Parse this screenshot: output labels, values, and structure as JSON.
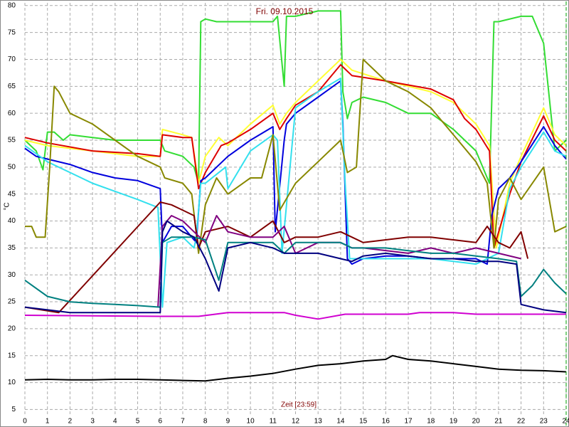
{
  "chart_data": {
    "type": "line",
    "title": "Fri. 09.10.2015",
    "x_label": "Zeit [23:59]",
    "y_label": "°C",
    "xlim": [
      0,
      24
    ],
    "xticks": [
      0,
      1,
      2,
      3,
      4,
      5,
      6,
      7,
      8,
      9,
      10,
      11,
      12,
      13,
      14,
      15,
      16,
      17,
      18,
      19,
      20,
      21,
      22,
      23,
      24
    ],
    "ylim": [
      4,
      80.5
    ],
    "yticks": [
      5,
      10,
      15,
      20,
      25,
      30,
      35,
      40,
      45,
      50,
      55,
      60,
      65,
      70,
      75,
      80
    ],
    "grid": true,
    "series": [
      {
        "color": "#000000",
        "x": [
          0,
          1,
          2,
          3,
          4,
          5,
          6,
          7,
          8,
          9,
          10,
          11,
          12,
          13,
          14,
          15,
          16,
          16.3,
          17,
          18,
          19,
          20,
          21,
          22,
          23,
          24
        ],
        "values": [
          10.5,
          10.6,
          10.5,
          10.5,
          10.6,
          10.6,
          10.5,
          10.4,
          10.3,
          10.8,
          11.2,
          11.7,
          12.5,
          13.2,
          13.5,
          14,
          14.3,
          15,
          14.3,
          14,
          13.5,
          13,
          12.5,
          12.3,
          12.2,
          12
        ]
      },
      {
        "color": "#d000d0",
        "x": [
          0,
          6,
          7.7,
          9,
          11.5,
          12,
          13,
          14.2,
          15,
          17,
          17.5,
          19,
          20,
          21,
          22,
          24
        ],
        "values": [
          22.5,
          22.3,
          22.3,
          23,
          23,
          22.5,
          21.8,
          22.7,
          22.7,
          22.7,
          23,
          23,
          22.7,
          22.7,
          22.7,
          22.7
        ]
      },
      {
        "color": "#33dd33",
        "x": [
          0,
          0.5,
          0.8,
          1,
          1.3,
          1.7,
          2,
          3,
          4,
          5,
          6,
          6.2,
          7,
          7.5,
          7.7,
          7.8,
          8,
          8.5,
          9,
          10,
          11,
          11.2,
          11.5,
          11.6,
          12,
          13,
          14,
          14.1,
          14.3,
          14.5,
          15,
          16,
          17,
          18,
          19,
          20,
          20.6,
          20.8,
          21,
          22,
          22.5,
          23,
          23.5,
          24
        ],
        "values": [
          55,
          53,
          49.5,
          56.5,
          56.5,
          55,
          56,
          55.5,
          55,
          55,
          55,
          53,
          52,
          50,
          47,
          77,
          77.5,
          77,
          77,
          77,
          77,
          78,
          65,
          78,
          78,
          79,
          79,
          64,
          59,
          62,
          63,
          62,
          60,
          60,
          57,
          53,
          47,
          77,
          77,
          78,
          78,
          73,
          53,
          55
        ]
      },
      {
        "color": "#ffff33",
        "x": [
          0,
          1,
          3,
          5,
          6,
          6.1,
          7,
          7.4,
          7.7,
          8,
          8.6,
          9,
          10,
          11,
          11.3,
          11.6,
          12,
          13,
          14,
          14.5,
          16,
          18,
          19,
          20,
          20.6,
          20.9,
          21.5,
          22,
          23,
          23.5,
          24
        ],
        "values": [
          55,
          54,
          53,
          52,
          52,
          57,
          56,
          55.5,
          47,
          52,
          55.5,
          54,
          58,
          61.5,
          58,
          60,
          62,
          66,
          70,
          68,
          66,
          64,
          62,
          58,
          54,
          35,
          47,
          52,
          61,
          56,
          54
        ]
      },
      {
        "color": "#dd0000",
        "x": [
          0,
          1,
          3,
          5,
          6,
          6.1,
          7,
          7.4,
          7.7,
          8,
          8.7,
          9,
          10,
          11,
          11.3,
          11.6,
          12,
          13,
          14,
          14.5,
          16,
          18,
          19,
          19.5,
          20,
          20.6,
          20.8,
          21.5,
          22,
          23,
          23.5,
          24
        ],
        "values": [
          55.5,
          54.5,
          53,
          52.5,
          52,
          56,
          55.5,
          55.5,
          46,
          49,
          54,
          54.5,
          57,
          60,
          57,
          59,
          61.5,
          64,
          69,
          67,
          66,
          64.5,
          62.5,
          59,
          57,
          53,
          35,
          45,
          51,
          59.5,
          55,
          53
        ]
      },
      {
        "color": "#0000dd",
        "x": [
          0,
          0.5,
          1,
          2,
          3,
          4,
          5,
          6,
          6.1,
          6.5,
          7,
          7.6,
          7.8,
          8,
          9,
          10,
          11,
          11.1,
          11.5,
          11.6,
          12,
          13,
          14,
          14.1,
          14.3,
          14.5,
          15,
          16,
          17,
          18,
          19,
          20,
          20.5,
          20.7,
          21,
          21.5,
          22,
          23,
          23.5,
          24
        ],
        "values": [
          53.5,
          52,
          51.5,
          50.5,
          49,
          48,
          47.5,
          46,
          36,
          39,
          39,
          36,
          47.5,
          48,
          52,
          55,
          57.5,
          38,
          55,
          58,
          60,
          63,
          66,
          58,
          33,
          32,
          33,
          33.5,
          33.5,
          33,
          33,
          33,
          32,
          41,
          46,
          48,
          51,
          57.5,
          54,
          51.5
        ]
      },
      {
        "color": "#33e0ee",
        "x": [
          0,
          1,
          2,
          3,
          4,
          5,
          5.9,
          6.1,
          6.3,
          7,
          7.5,
          7.6,
          7.8,
          8,
          8.9,
          9,
          10,
          11,
          11.2,
          11.4,
          12,
          13,
          14,
          14.2,
          14.4,
          15,
          17,
          18,
          19,
          20,
          21,
          21.5,
          22,
          23,
          23.5,
          24
        ],
        "values": [
          54,
          51,
          49,
          47,
          45.5,
          44,
          42.5,
          24,
          36,
          37,
          35,
          37,
          47,
          47,
          50,
          46,
          53,
          56,
          55,
          34,
          61,
          64,
          66.5,
          47,
          33,
          33,
          33,
          33,
          32.5,
          32,
          34,
          46,
          50,
          56.5,
          53,
          52
        ]
      },
      {
        "color": "#888800",
        "x": [
          0,
          0.3,
          0.5,
          0.9,
          1.1,
          1.3,
          1.5,
          2,
          3,
          4,
          5,
          6,
          6.2,
          7,
          7.4,
          7.7,
          8,
          8.5,
          9,
          10,
          10.5,
          11,
          11.3,
          12,
          13,
          14,
          14.3,
          14.7,
          15,
          15.5,
          16,
          17,
          18,
          19,
          20,
          20.5,
          20.8,
          21,
          21.5,
          22,
          23,
          23.5,
          24
        ],
        "values": [
          39,
          39,
          37,
          37,
          50,
          65,
          64,
          60,
          58,
          55,
          52,
          50,
          48,
          47,
          45,
          34,
          43,
          48,
          45,
          48,
          48,
          56,
          42,
          47,
          51,
          55,
          49,
          50,
          70,
          68,
          66,
          64,
          61,
          56,
          51,
          47,
          35,
          44,
          48,
          44,
          50,
          38,
          39
        ]
      },
      {
        "color": "#800000",
        "x": [
          0,
          1.5,
          6,
          6.5,
          7,
          7.5,
          7.7,
          8,
          9,
          10,
          11,
          11.5,
          12,
          13,
          14,
          15,
          16,
          17,
          18,
          19,
          20,
          20.5,
          21,
          21.5,
          22,
          22.3
        ],
        "values": [
          24,
          23,
          43.5,
          43,
          42,
          41,
          35,
          38,
          39,
          37,
          40,
          36,
          37,
          37,
          38,
          36,
          36.5,
          37,
          37,
          36.5,
          36,
          39,
          36,
          35,
          38,
          33
        ]
      },
      {
        "color": "#800080",
        "x": [
          5.9,
          6.1,
          6.5,
          7,
          7.5,
          8,
          8.5,
          9,
          10,
          11,
          11.5,
          12,
          13,
          14,
          14.5,
          15,
          17,
          18,
          19,
          20,
          21,
          22
        ],
        "values": [
          24,
          39,
          41,
          40,
          38,
          36,
          41,
          38,
          37,
          37,
          39,
          34,
          36,
          36,
          35,
          35,
          34,
          35,
          34,
          35,
          34,
          33
        ]
      },
      {
        "color": "#008080",
        "x": [
          0,
          1,
          2,
          3,
          4,
          5,
          6,
          6.1,
          6.5,
          7,
          7.5,
          8,
          8.6,
          9,
          10,
          11,
          11.5,
          12,
          13,
          14,
          14.5,
          15,
          16,
          17,
          18,
          19,
          20,
          21,
          21.8,
          22,
          22.5,
          23,
          23.5,
          24
        ],
        "values": [
          29,
          26,
          25,
          24.7,
          24.5,
          24.3,
          24,
          36,
          37,
          37,
          37,
          36.5,
          29,
          36,
          36,
          36,
          34,
          36,
          36,
          36,
          35,
          35,
          35,
          34.5,
          34,
          34,
          33.5,
          33,
          32.5,
          26,
          28,
          31,
          28.5,
          26.5
        ]
      },
      {
        "color": "#000080",
        "x": [
          0,
          1,
          2,
          3,
          4,
          5,
          6,
          6.1,
          6.3,
          7,
          7.5,
          8,
          8.6,
          9,
          10,
          11,
          11.5,
          12,
          13,
          14,
          14.5,
          15,
          16,
          17,
          18,
          19,
          20,
          21,
          21.8,
          22,
          23,
          24
        ],
        "values": [
          24,
          23.5,
          23,
          23,
          23,
          23,
          23,
          38,
          40,
          38,
          37,
          33,
          27,
          35,
          36,
          35,
          34,
          34,
          34,
          33,
          32.5,
          33.5,
          34,
          33.5,
          33,
          33,
          32.5,
          32.5,
          32,
          24.5,
          23.5,
          23
        ]
      }
    ]
  }
}
